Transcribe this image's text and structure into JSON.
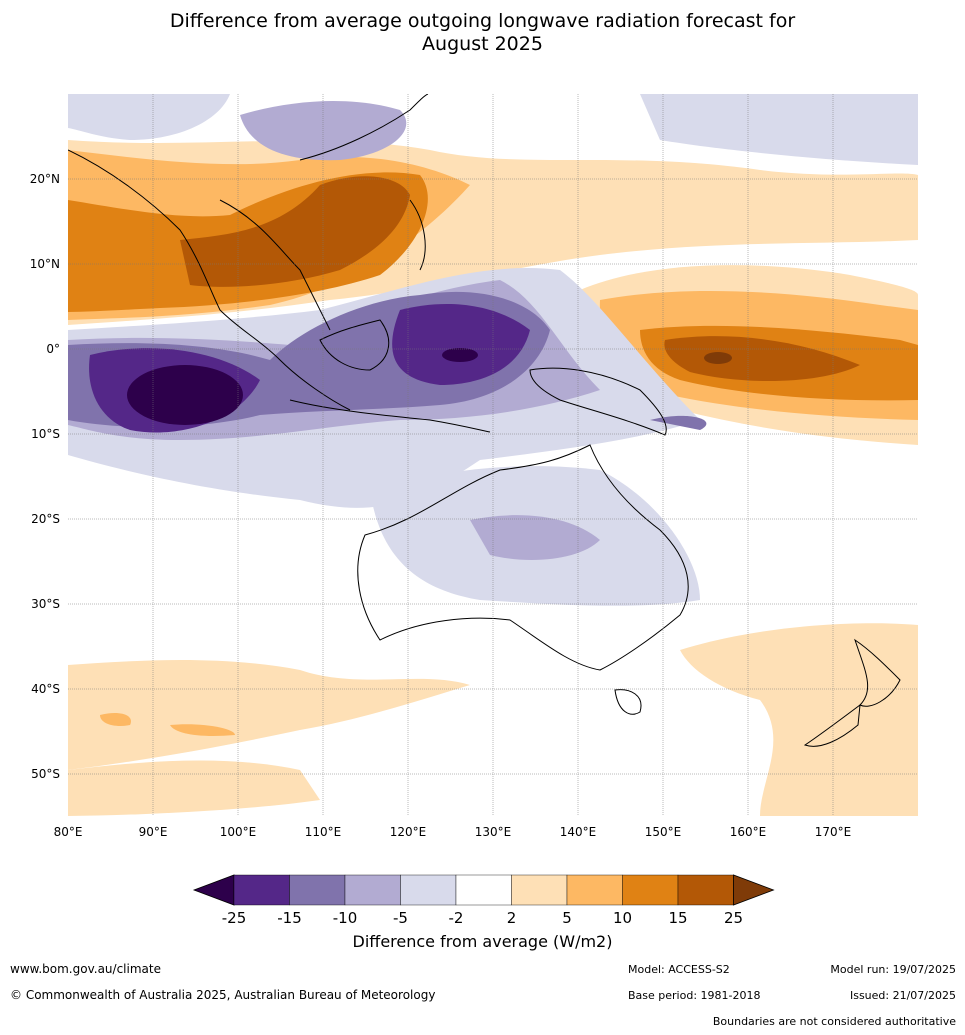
{
  "title": {
    "line1": "Difference from average outgoing longwave radiation forecast for",
    "line2": "August 2025"
  },
  "map": {
    "x_axis_labels": [
      "80°E",
      "90°E",
      "100°E",
      "110°E",
      "120°E",
      "130°E",
      "140°E",
      "150°E",
      "160°E",
      "170°E"
    ],
    "y_axis_labels": [
      "20°N",
      "10°N",
      "0°",
      "10°S",
      "20°S",
      "30°S",
      "40°S",
      "50°S"
    ],
    "legend_title": "Difference from average (W/m2)",
    "colorbar": {
      "ticks": [
        "-25",
        "-15",
        "-10",
        "-5",
        "-2",
        "2",
        "5",
        "10",
        "15",
        "25"
      ],
      "colors": [
        "#2d004b",
        "#542788",
        "#8073ac",
        "#b2abd2",
        "#d8daeb",
        "#ffffff",
        "#fee0b6",
        "#fdb863",
        "#e08214",
        "#b35806",
        "#7f3b08"
      ]
    }
  },
  "footer": {
    "url": "www.bom.gov.au/climate",
    "copyright": "© Commonwealth of Australia 2025, Australian Bureau of Meteorology",
    "model": "Model: ACCESS-S2",
    "base_period": "Base period: 1981-2018",
    "model_run": "Model run: 19/07/2025",
    "issued": "Issued: 21/07/2025",
    "disclaimer": "Boundaries are not considered authoritative"
  }
}
